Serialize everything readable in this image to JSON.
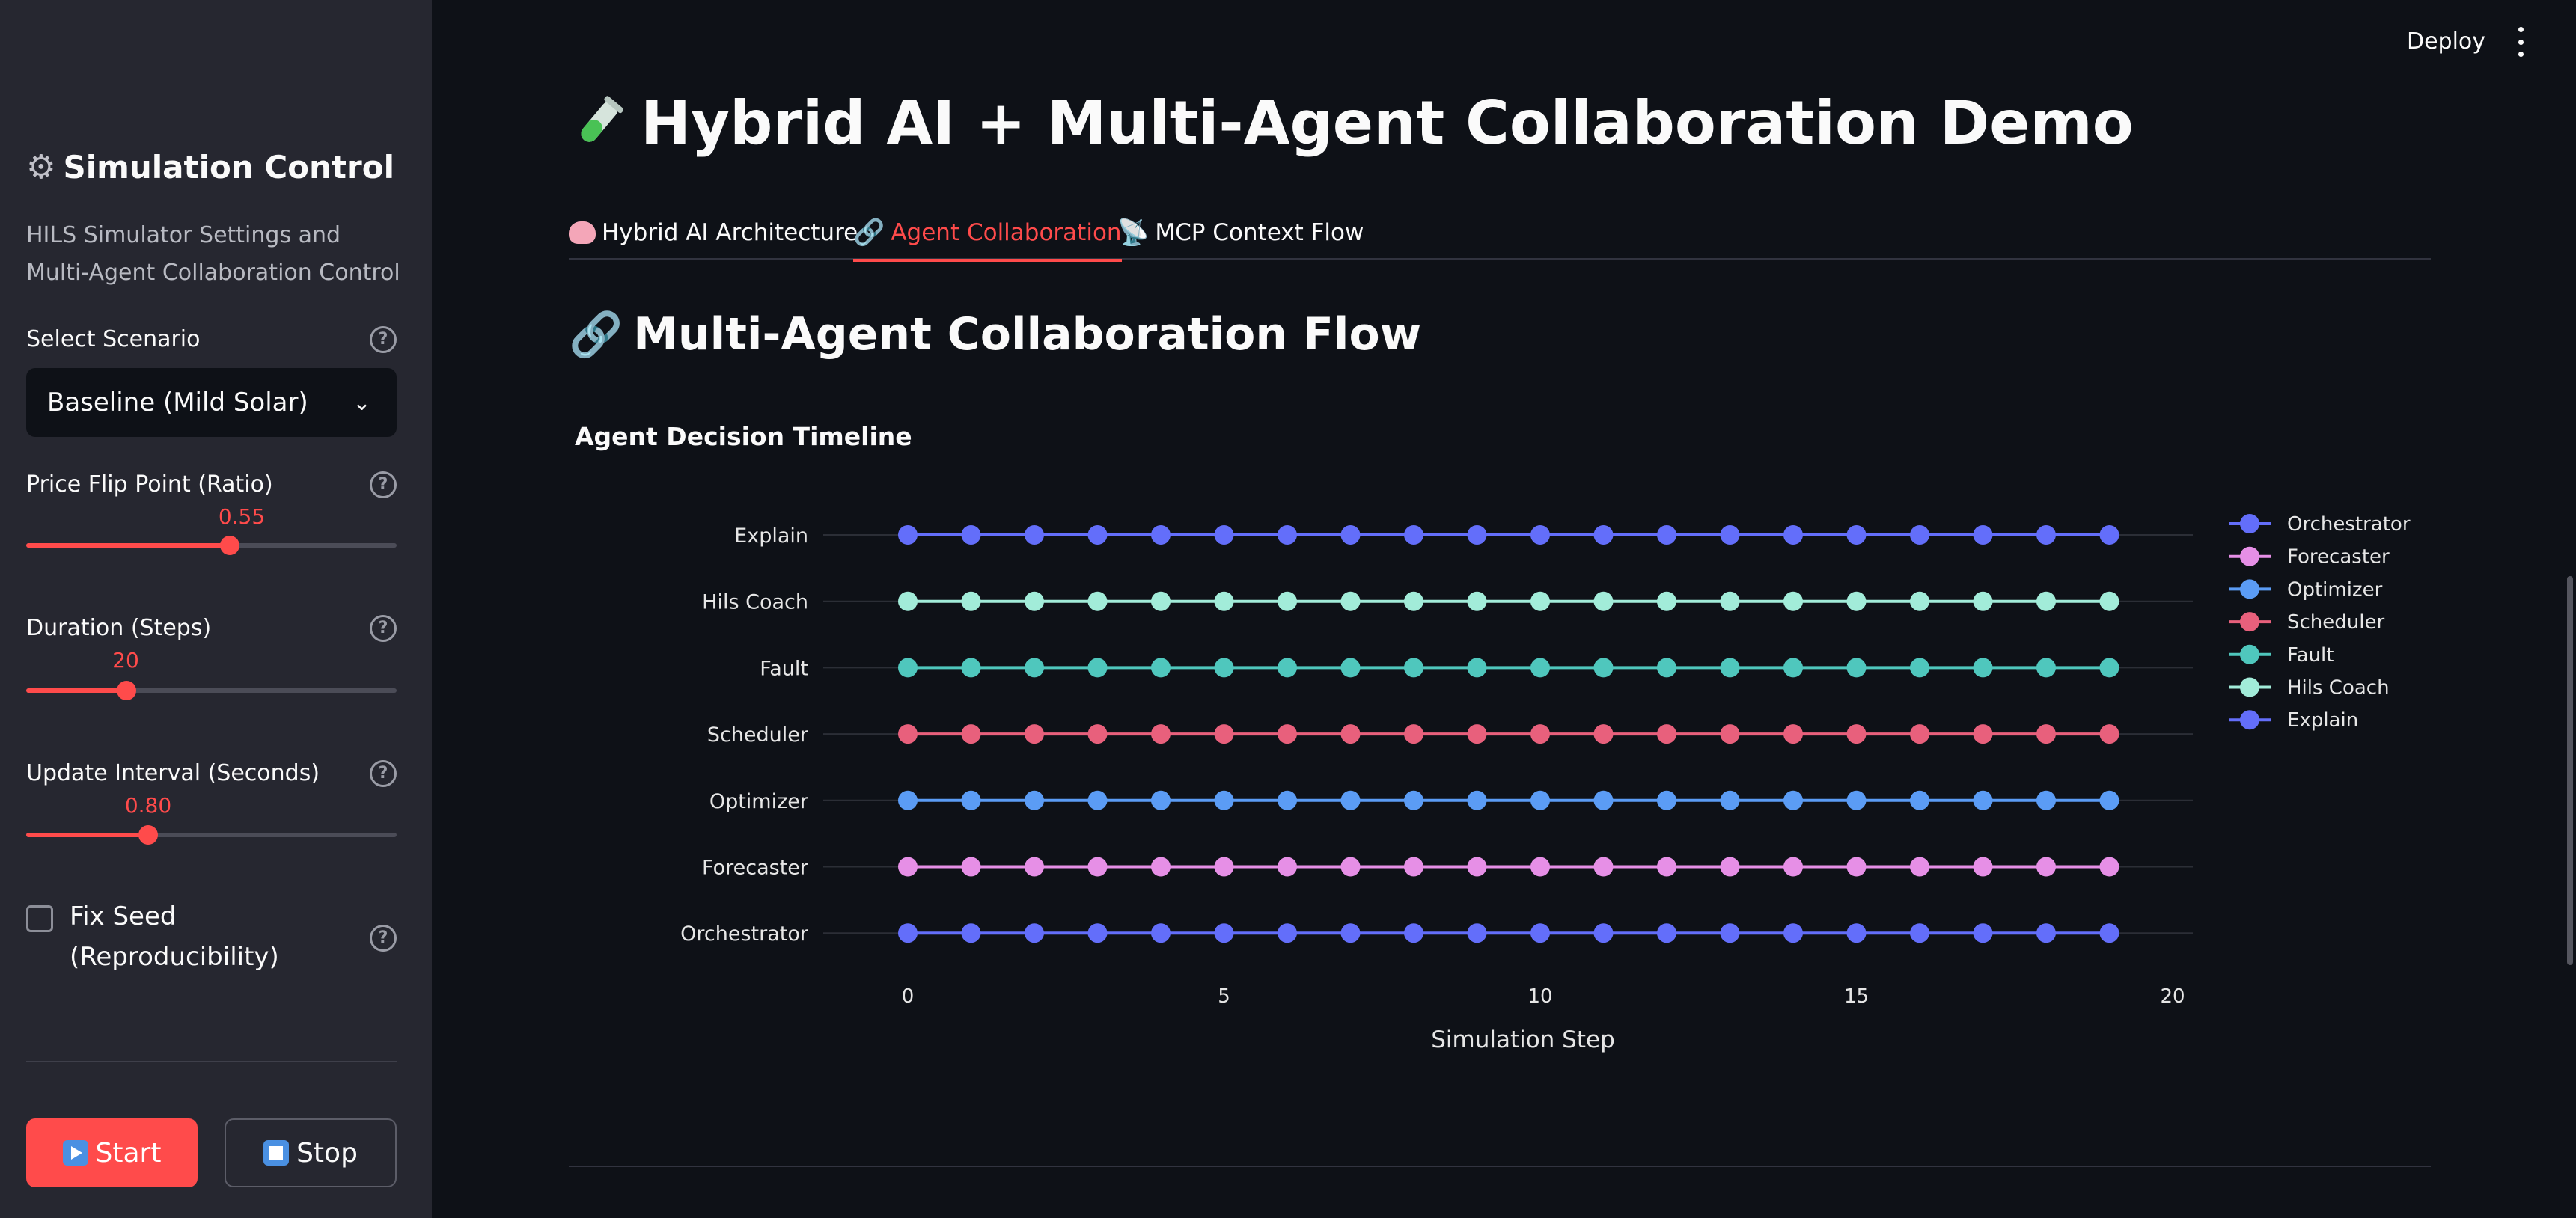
{
  "header": {
    "deploy_label": "Deploy"
  },
  "sidebar": {
    "title": "Simulation Control",
    "description": "HILS Simulator Settings and Multi-Agent Collaboration Control",
    "scenario": {
      "label": "Select Scenario",
      "value": "Baseline (Mild Solar)"
    },
    "price_flip": {
      "label": "Price Flip Point (Ratio)",
      "value": "0.55",
      "fraction": 0.55
    },
    "duration": {
      "label": "Duration (Steps)",
      "value": "20",
      "fraction": 0.27
    },
    "update_interval": {
      "label": "Update Interval (Seconds)",
      "value": "0.80",
      "fraction": 0.33
    },
    "fix_seed": {
      "label": "Fix Seed (Reproducibility)",
      "checked": false
    },
    "start_label": "Start",
    "stop_label": "Stop"
  },
  "main": {
    "title": "Hybrid AI + Multi-Agent Collaboration Demo",
    "tabs": [
      {
        "label": "Hybrid AI Architecture",
        "active": false,
        "icon": "brain-icon"
      },
      {
        "label": "Agent Collaboration",
        "active": true,
        "icon": "link-icon"
      },
      {
        "label": "MCP Context Flow",
        "active": false,
        "icon": "satellite-icon"
      }
    ],
    "section_title": "Multi-Agent Collaboration Flow"
  },
  "chart_data": {
    "type": "scatter",
    "title": "Agent Decision Timeline",
    "xlabel": "Simulation Step",
    "ylabel": "",
    "xlim": [
      -1,
      20
    ],
    "xticks": [
      0,
      5,
      10,
      15,
      20
    ],
    "x": [
      0,
      1,
      2,
      3,
      4,
      5,
      6,
      7,
      8,
      9,
      10,
      11,
      12,
      13,
      14,
      15,
      16,
      17,
      18,
      19
    ],
    "categories": [
      "Orchestrator",
      "Forecaster",
      "Optimizer",
      "Scheduler",
      "Fault",
      "Hils Coach",
      "Explain"
    ],
    "grid": true,
    "legend_position": "right",
    "series": [
      {
        "name": "Orchestrator",
        "color": "#636efa"
      },
      {
        "name": "Forecaster",
        "color": "#e68fe6"
      },
      {
        "name": "Optimizer",
        "color": "#5b9cf5"
      },
      {
        "name": "Scheduler",
        "color": "#e8607c"
      },
      {
        "name": "Fault",
        "color": "#4fc7bd"
      },
      {
        "name": "Hils Coach",
        "color": "#a2ecd9"
      },
      {
        "name": "Explain",
        "color": "#636efa"
      }
    ]
  }
}
